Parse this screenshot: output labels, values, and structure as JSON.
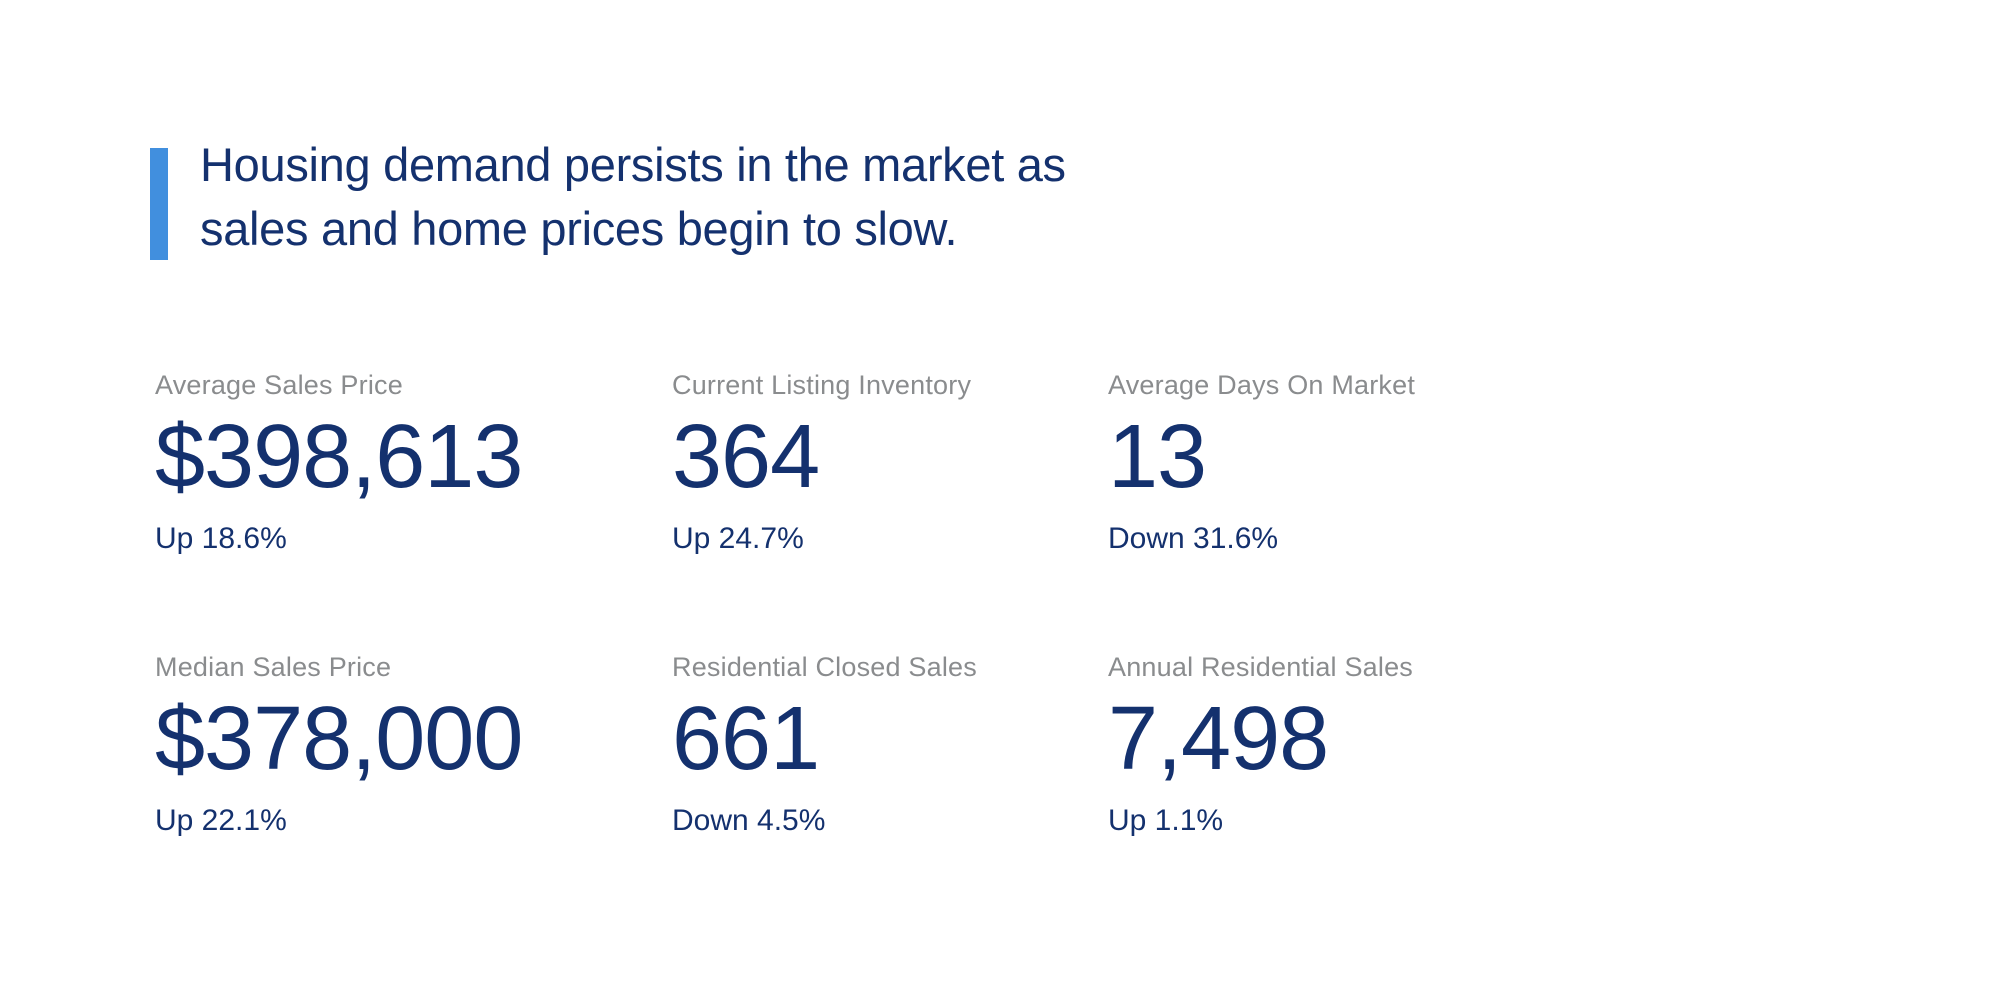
{
  "page": {
    "background_color": "#ffffff"
  },
  "headline": {
    "line1": "Housing demand persists in the market as",
    "line2": "sales and home prices begin to slow.",
    "text_color": "#14316e",
    "accent_bar_color": "#418fde"
  },
  "stats": {
    "label_color": "#8a8c8e",
    "value_color": "#14316e",
    "cards": [
      {
        "label": "Average Sales Price",
        "value": "$398,613",
        "change": "Up 18.6%"
      },
      {
        "label": "Current Listing Inventory",
        "value": "364",
        "change": "Up 24.7%"
      },
      {
        "label": "Average Days On Market",
        "value": "13",
        "change": "Down 31.6%"
      },
      {
        "label": "Median Sales Price",
        "value": "$378,000",
        "change": "Up 22.1%"
      },
      {
        "label": "Residential Closed Sales",
        "value": "661",
        "change": "Down 4.5%"
      },
      {
        "label": "Annual Residential Sales",
        "value": "7,498",
        "change": "Up 1.1%"
      }
    ]
  }
}
